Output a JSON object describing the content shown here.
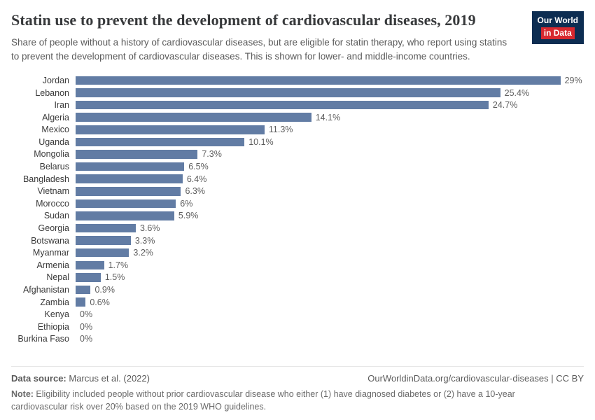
{
  "header": {
    "title": "Statin use to prevent the development of cardiovascular diseases, 2019",
    "subtitle": "Share of people without a history of cardiovascular diseases, but are eligible for statin therapy, who report using statins to prevent the development of cardiovascular diseases. This is shown for lower- and middle-income countries.",
    "logo": {
      "line1": "Our World",
      "line2": "in Data"
    }
  },
  "chart_data": {
    "type": "bar",
    "orientation": "horizontal",
    "title": "Statin use to prevent the development of cardiovascular diseases, 2019",
    "categories": [
      "Jordan",
      "Lebanon",
      "Iran",
      "Algeria",
      "Mexico",
      "Uganda",
      "Mongolia",
      "Belarus",
      "Bangladesh",
      "Vietnam",
      "Morocco",
      "Sudan",
      "Georgia",
      "Botswana",
      "Myanmar",
      "Armenia",
      "Nepal",
      "Afghanistan",
      "Zambia",
      "Kenya",
      "Ethiopia",
      "Burkina Faso"
    ],
    "values": [
      29,
      25.4,
      24.7,
      14.1,
      11.3,
      10.1,
      7.3,
      6.5,
      6.4,
      6.3,
      6,
      5.9,
      3.6,
      3.3,
      3.2,
      1.7,
      1.5,
      0.9,
      0.6,
      0,
      0,
      0
    ],
    "value_labels": [
      "29%",
      "25.4%",
      "24.7%",
      "14.1%",
      "11.3%",
      "10.1%",
      "7.3%",
      "6.5%",
      "6.4%",
      "6.3%",
      "6%",
      "5.9%",
      "3.6%",
      "3.3%",
      "3.2%",
      "1.7%",
      "1.5%",
      "0.9%",
      "0.6%",
      "0%",
      "0%",
      "0%"
    ],
    "xlim": [
      0,
      29
    ],
    "xlabel": "",
    "ylabel": "",
    "grid": false,
    "legend": "none",
    "bar_color": "#627ca4"
  },
  "footer": {
    "source_label": "Data source:",
    "source_text": " Marcus et al. (2022)",
    "right_text": "OurWorldinData.org/cardiovascular-diseases | CC BY",
    "note_label": "Note:",
    "note_text": " Eligibility included people without prior cardiovascular disease who either (1) have diagnosed diabetes or (2) have a 10-year cardiovascular risk over 20% based on the 2019 WHO guidelines."
  }
}
